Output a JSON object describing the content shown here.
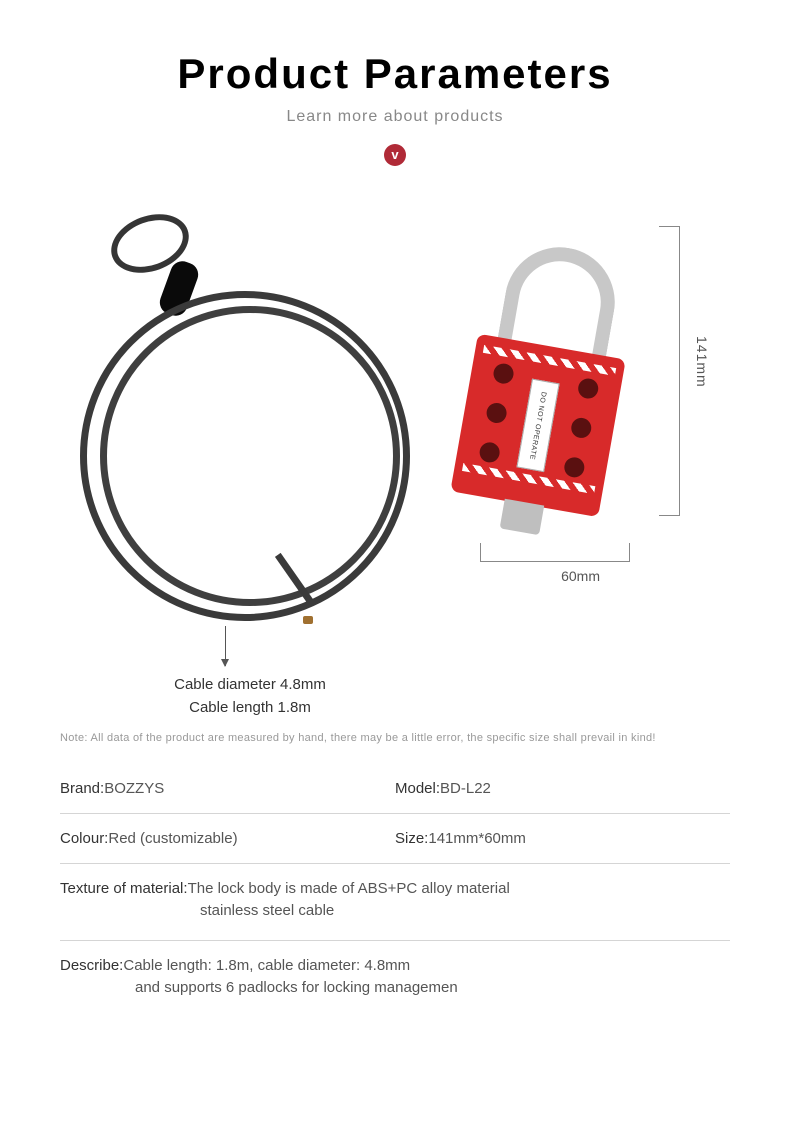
{
  "header": {
    "title": "Product Parameters",
    "subtitle": "Learn more about products",
    "badge": "v"
  },
  "product_figure": {
    "hasp": {
      "body_color": "#d82a2a",
      "shackle_color": "#c8c8c8",
      "hole_color": "#5a1010",
      "label_text": "DO NOT OPERATE",
      "padlock_holes": 6
    },
    "cable": {
      "color": "#3a3a3a",
      "tip_color": "#a07030"
    },
    "dimensions": {
      "height_label": "141mm",
      "width_label": "60mm",
      "line_color": "#888888"
    },
    "cable_info": {
      "line1": "Cable diameter 4.8mm",
      "line2": "Cable length 1.8m"
    }
  },
  "note": "Note: All data of the product are measured by hand, there may be a little error, the specific size shall prevail in kind!",
  "specs": {
    "brand": {
      "label": "Brand:",
      "value": "BOZZYS"
    },
    "model": {
      "label": "Model:",
      "value": "BD-L22"
    },
    "colour": {
      "label": "Colour:",
      "value": "Red (customizable)"
    },
    "size": {
      "label": "Size:",
      "value": "141mm*60mm"
    },
    "material": {
      "label": "Texture of material:",
      "value": "The lock body is made of ABS+PC alloy material",
      "value2": "stainless steel cable"
    },
    "describe": {
      "label": "Describe:",
      "value": "Cable length: 1.8m, cable diameter: 4.8mm",
      "value2": "and supports 6 padlocks for locking managemen"
    }
  },
  "colors": {
    "accent": "#b02a37",
    "text_muted": "#888888",
    "divider": "#d5d5d5"
  }
}
